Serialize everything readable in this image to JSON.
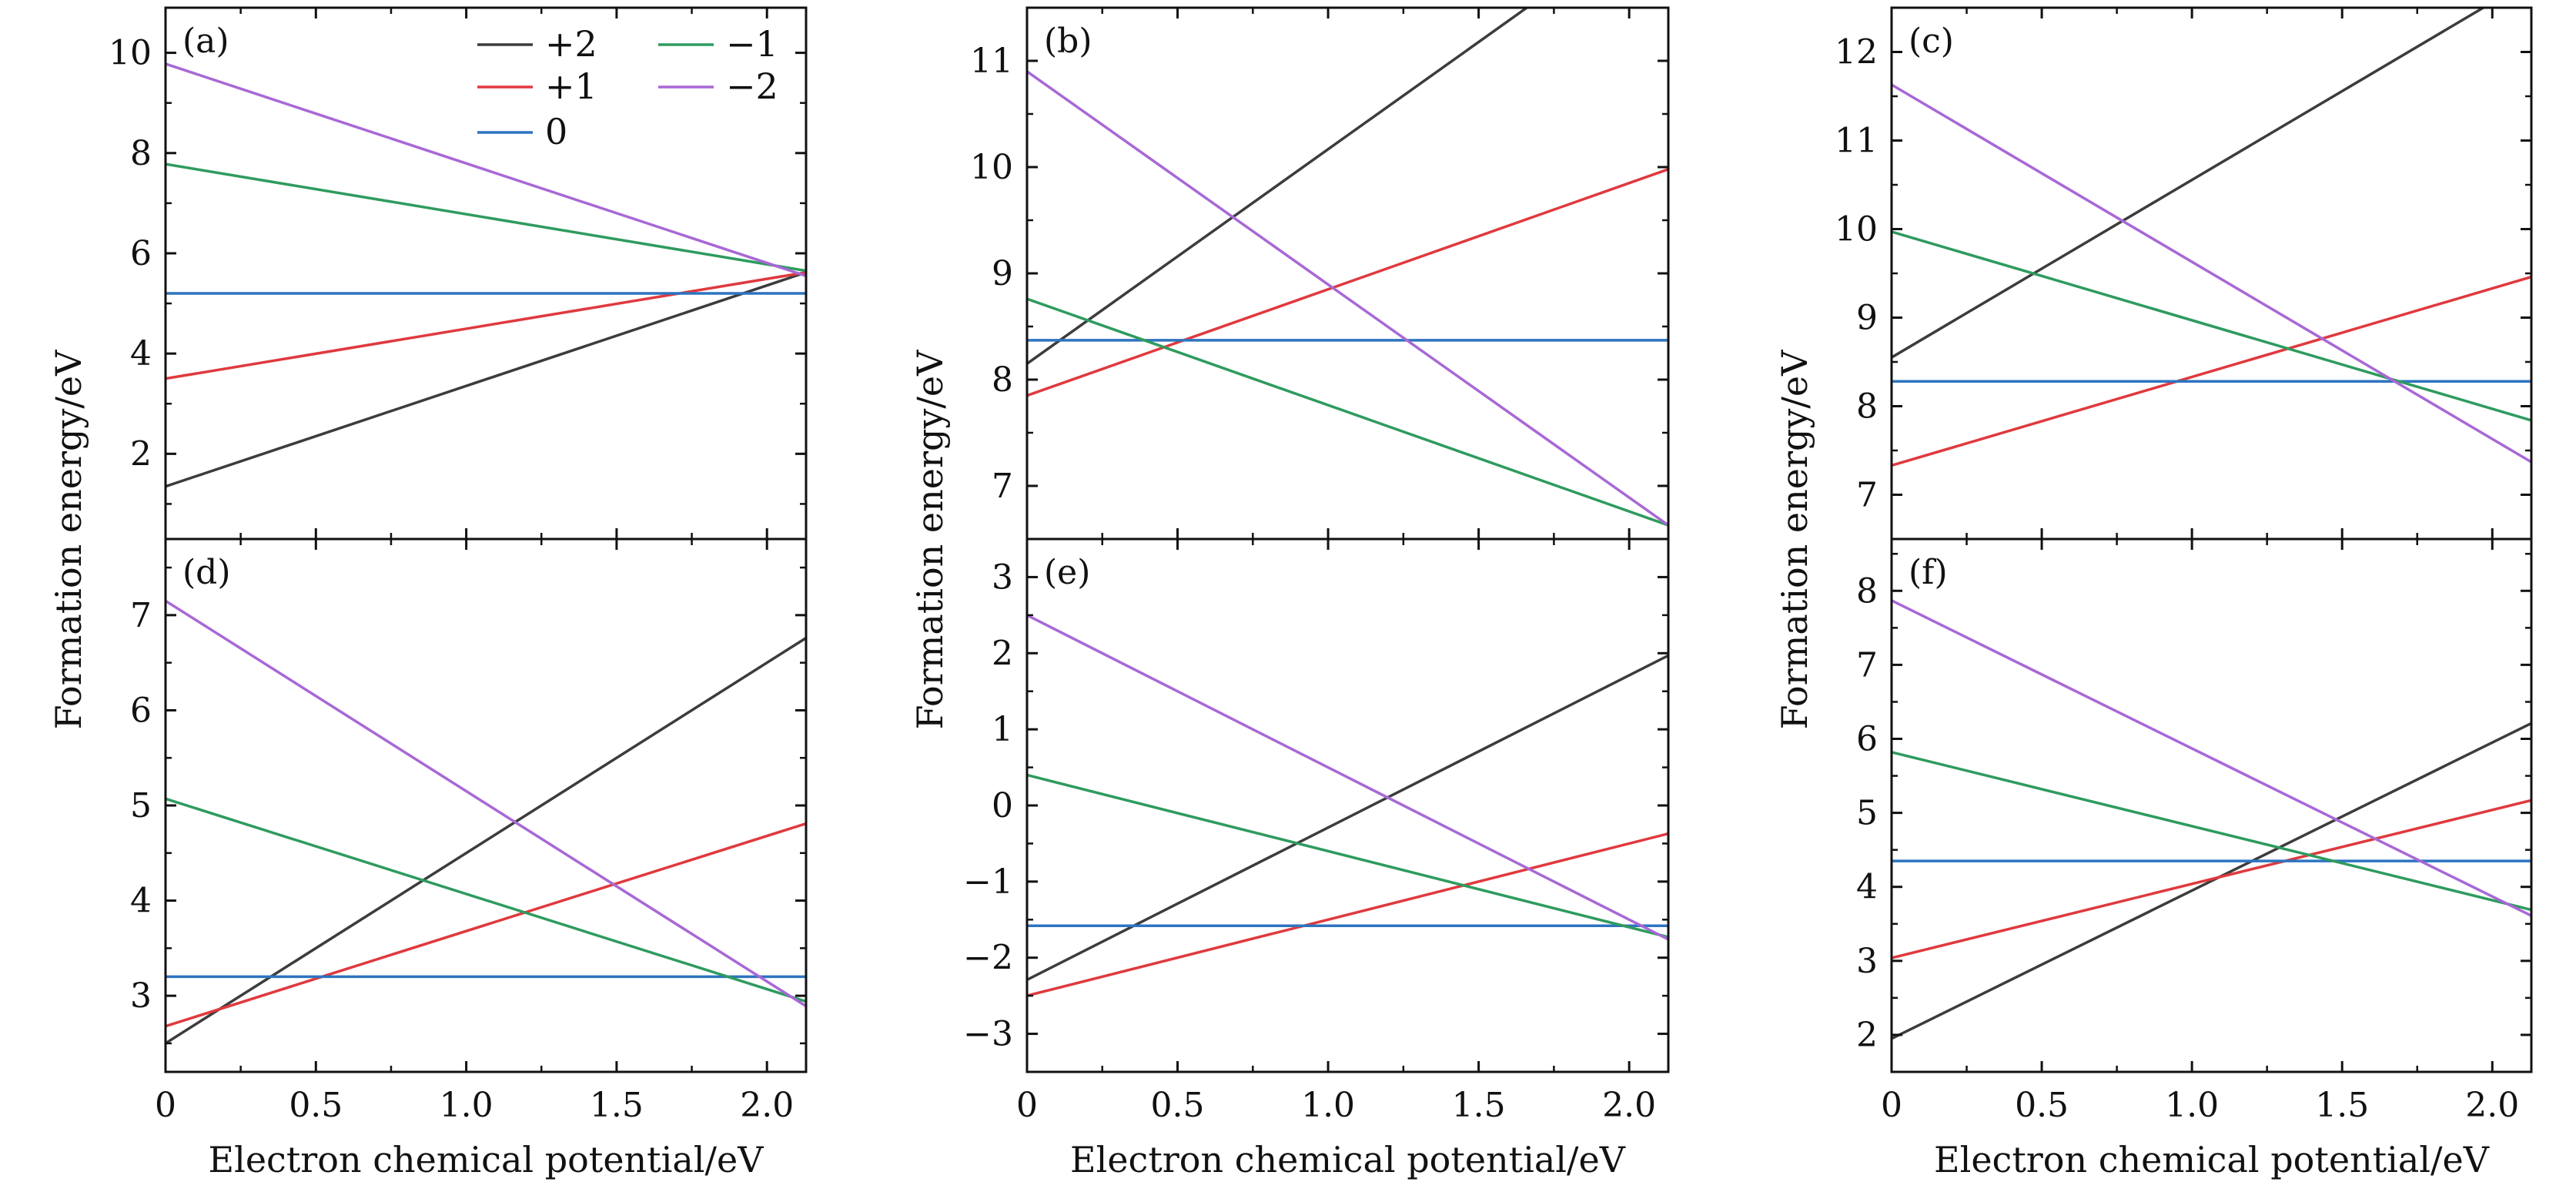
{
  "chart_data": {
    "type": "line",
    "xlabel": "Electron chemical potential/eV",
    "ylabel": "Formation energy/eV",
    "xlim": [
      0,
      2.13
    ],
    "xticks": [
      0,
      0.5,
      1.0,
      1.5,
      2.0
    ],
    "xtick_labels": [
      "0",
      "0.5",
      "1.0",
      "1.5",
      "2.0"
    ],
    "colors": {
      "+2": "#3c3c3c",
      "+1": "#e0393e",
      "0": "#2d74c0",
      "-1": "#2e9b5e",
      "-2": "#a868d6"
    },
    "legend": {
      "location": "top-right of panel (a)",
      "entries": [
        {
          "key": "+2",
          "label": "+2"
        },
        {
          "key": "-1",
          "label": "−1"
        },
        {
          "key": "+1",
          "label": "+1"
        },
        {
          "key": "-2",
          "label": "−2"
        },
        {
          "key": "0",
          "label": "0"
        }
      ]
    },
    "panels": [
      {
        "label": "(a)",
        "ylim": [
          0.3,
          10.9
        ],
        "yticks": [
          2,
          4,
          6,
          8,
          10
        ],
        "ytick_labels": [
          "2",
          "4",
          "6",
          "8",
          "10"
        ],
        "series": [
          {
            "name": "+2",
            "x": [
              0,
              2.13
            ],
            "y": [
              1.35,
              5.62
            ]
          },
          {
            "name": "+1",
            "x": [
              0,
              2.13
            ],
            "y": [
              3.5,
              5.62
            ]
          },
          {
            "name": "0",
            "x": [
              0,
              2.13
            ],
            "y": [
              5.2,
              5.2
            ]
          },
          {
            "name": "-1",
            "x": [
              0,
              2.13
            ],
            "y": [
              7.78,
              5.65
            ]
          },
          {
            "name": "-2",
            "x": [
              0,
              2.13
            ],
            "y": [
              9.78,
              5.55
            ]
          }
        ]
      },
      {
        "label": "(b)",
        "ylim": [
          6.5,
          11.5
        ],
        "yticks": [
          7,
          8,
          9,
          10,
          11
        ],
        "ytick_labels": [
          "7",
          "8",
          "9",
          "10",
          "11"
        ],
        "series": [
          {
            "name": "+2",
            "x": [
              0,
              1.66
            ],
            "y": [
              8.15,
              11.5
            ]
          },
          {
            "name": "+1",
            "x": [
              0,
              2.13
            ],
            "y": [
              7.85,
              9.98
            ]
          },
          {
            "name": "0",
            "x": [
              0,
              2.13
            ],
            "y": [
              8.37,
              8.37
            ]
          },
          {
            "name": "-1",
            "x": [
              0,
              2.13
            ],
            "y": [
              8.76,
              6.63
            ]
          },
          {
            "name": "-2",
            "x": [
              0,
              2.13
            ],
            "y": [
              10.9,
              6.63
            ]
          }
        ]
      },
      {
        "label": "(c)",
        "ylim": [
          6.5,
          12.5
        ],
        "yticks": [
          7,
          8,
          9,
          10,
          11,
          12
        ],
        "ytick_labels": [
          "7",
          "8",
          "9",
          "10",
          "11",
          "12"
        ],
        "series": [
          {
            "name": "+2",
            "x": [
              0,
              1.97
            ],
            "y": [
              8.55,
              12.5
            ]
          },
          {
            "name": "+1",
            "x": [
              0,
              2.13
            ],
            "y": [
              7.33,
              9.46
            ]
          },
          {
            "name": "0",
            "x": [
              0,
              2.13
            ],
            "y": [
              8.28,
              8.28
            ]
          },
          {
            "name": "-1",
            "x": [
              0,
              2.13
            ],
            "y": [
              9.97,
              7.84
            ]
          },
          {
            "name": "-2",
            "x": [
              0,
              2.13
            ],
            "y": [
              11.63,
              7.37
            ]
          }
        ]
      },
      {
        "label": "(d)",
        "ylim": [
          2.2,
          7.8
        ],
        "yticks": [
          3,
          4,
          5,
          6,
          7
        ],
        "ytick_labels": [
          "3",
          "4",
          "5",
          "6",
          "7"
        ],
        "series": [
          {
            "name": "+2",
            "x": [
              0,
              2.13
            ],
            "y": [
              2.5,
              6.76
            ]
          },
          {
            "name": "+1",
            "x": [
              0,
              2.13
            ],
            "y": [
              2.68,
              4.81
            ]
          },
          {
            "name": "0",
            "x": [
              0,
              2.13
            ],
            "y": [
              3.2,
              3.2
            ]
          },
          {
            "name": "-1",
            "x": [
              0,
              2.13
            ],
            "y": [
              5.07,
              2.94
            ]
          },
          {
            "name": "-2",
            "x": [
              0,
              2.13
            ],
            "y": [
              7.15,
              2.89
            ]
          }
        ]
      },
      {
        "label": "(e)",
        "ylim": [
          -3.5,
          3.5
        ],
        "yticks": [
          -3,
          -2,
          -1,
          0,
          1,
          2,
          3
        ],
        "ytick_labels": [
          "−3",
          "−2",
          "−1",
          "0",
          "1",
          "2",
          "3"
        ],
        "series": [
          {
            "name": "+2",
            "x": [
              0,
              2.13
            ],
            "y": [
              -2.29,
              1.97
            ]
          },
          {
            "name": "+1",
            "x": [
              0,
              2.13
            ],
            "y": [
              -2.5,
              -0.37
            ]
          },
          {
            "name": "0",
            "x": [
              0,
              2.13
            ],
            "y": [
              -1.58,
              -1.58
            ]
          },
          {
            "name": "-1",
            "x": [
              0,
              2.13
            ],
            "y": [
              0.4,
              -1.73
            ]
          },
          {
            "name": "-2",
            "x": [
              0,
              2.13
            ],
            "y": [
              2.5,
              -1.76
            ]
          }
        ]
      },
      {
        "label": "(f)",
        "ylim": [
          1.5,
          8.7
        ],
        "yticks": [
          2,
          3,
          4,
          5,
          6,
          7,
          8
        ],
        "ytick_labels": [
          "2",
          "3",
          "4",
          "5",
          "6",
          "7",
          "8"
        ],
        "series": [
          {
            "name": "+2",
            "x": [
              0,
              2.13
            ],
            "y": [
              1.95,
              6.21
            ]
          },
          {
            "name": "+1",
            "x": [
              0,
              2.13
            ],
            "y": [
              3.04,
              5.17
            ]
          },
          {
            "name": "0",
            "x": [
              0,
              2.13
            ],
            "y": [
              4.35,
              4.35
            ]
          },
          {
            "name": "-1",
            "x": [
              0,
              2.13
            ],
            "y": [
              5.82,
              3.69
            ]
          },
          {
            "name": "-2",
            "x": [
              0,
              2.13
            ],
            "y": [
              7.87,
              3.61
            ]
          }
        ]
      }
    ]
  }
}
